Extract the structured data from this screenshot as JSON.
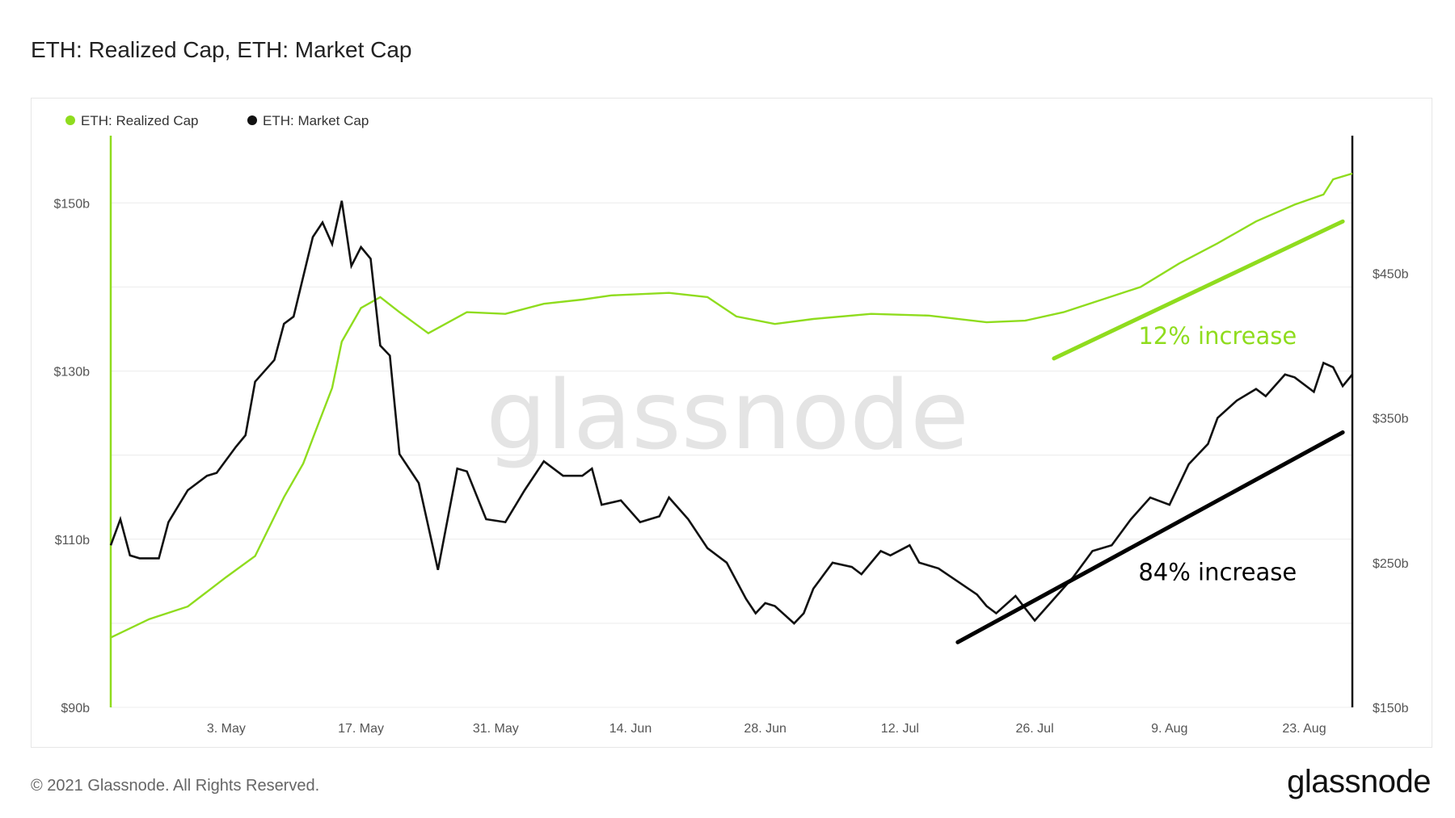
{
  "header": {
    "title": "ETH: Realized Cap, ETH: Market Cap"
  },
  "footer": {
    "copyright": "© 2021 Glassnode. All Rights Reserved.",
    "logo": "glassnode"
  },
  "watermark": "glassnode",
  "colors": {
    "realized": "#8fdc1e",
    "market": "#111111",
    "grid": "#ececec"
  },
  "chart_data": {
    "type": "line",
    "title": "ETH: Realized Cap, ETH: Market Cap",
    "legend_position": "top-left",
    "grid": true,
    "x_tick_labels": [
      "3. May",
      "17. May",
      "31. May",
      "14. Jun",
      "28. Jun",
      "12. Jul",
      "26. Jul",
      "9. Aug",
      "23. Aug"
    ],
    "x_range": [
      "2021-04-21",
      "2021-08-28"
    ],
    "y_left": {
      "unit": "USD billions",
      "range": [
        90,
        158
      ],
      "ticks": [
        90,
        110,
        130,
        150
      ],
      "tick_labels": [
        "$90b",
        "$110b",
        "$130b",
        "$150b"
      ]
    },
    "y_right": {
      "unit": "USD billions",
      "range": [
        150,
        545
      ],
      "ticks": [
        150,
        250,
        350,
        450
      ],
      "tick_labels": [
        "$150b",
        "$250b",
        "$350b",
        "$450b"
      ]
    },
    "series": [
      {
        "name": "ETH: Realized Cap",
        "axis": "left",
        "color": "#8fdc1e",
        "points": [
          [
            "2021-04-21",
            98.3
          ],
          [
            "2021-04-25",
            100.5
          ],
          [
            "2021-04-29",
            102.0
          ],
          [
            "2021-05-03",
            105.5
          ],
          [
            "2021-05-06",
            108.0
          ],
          [
            "2021-05-09",
            115.0
          ],
          [
            "2021-05-11",
            119.0
          ],
          [
            "2021-05-12",
            122.0
          ],
          [
            "2021-05-14",
            128.0
          ],
          [
            "2021-05-15",
            133.5
          ],
          [
            "2021-05-17",
            137.5
          ],
          [
            "2021-05-19",
            138.8
          ],
          [
            "2021-05-21",
            137.0
          ],
          [
            "2021-05-24",
            134.5
          ],
          [
            "2021-05-28",
            137.0
          ],
          [
            "2021-06-01",
            136.8
          ],
          [
            "2021-06-05",
            138.0
          ],
          [
            "2021-06-09",
            138.5
          ],
          [
            "2021-06-12",
            139.0
          ],
          [
            "2021-06-18",
            139.3
          ],
          [
            "2021-06-22",
            138.8
          ],
          [
            "2021-06-25",
            136.5
          ],
          [
            "2021-06-29",
            135.6
          ],
          [
            "2021-07-03",
            136.2
          ],
          [
            "2021-07-09",
            136.8
          ],
          [
            "2021-07-15",
            136.6
          ],
          [
            "2021-07-21",
            135.8
          ],
          [
            "2021-07-25",
            136.0
          ],
          [
            "2021-07-29",
            137.0
          ],
          [
            "2021-08-02",
            138.5
          ],
          [
            "2021-08-06",
            140.0
          ],
          [
            "2021-08-10",
            142.8
          ],
          [
            "2021-08-14",
            145.2
          ],
          [
            "2021-08-18",
            147.8
          ],
          [
            "2021-08-22",
            149.8
          ],
          [
            "2021-08-25",
            151.0
          ],
          [
            "2021-08-26",
            152.8
          ],
          [
            "2021-08-28",
            153.5
          ]
        ]
      },
      {
        "name": "ETH: Market Cap",
        "axis": "right",
        "color": "#111111",
        "points": [
          [
            "2021-04-21",
            262
          ],
          [
            "2021-04-22",
            280
          ],
          [
            "2021-04-23",
            255
          ],
          [
            "2021-04-24",
            253
          ],
          [
            "2021-04-26",
            253
          ],
          [
            "2021-04-27",
            278
          ],
          [
            "2021-04-29",
            300
          ],
          [
            "2021-05-01",
            310
          ],
          [
            "2021-05-02",
            312
          ],
          [
            "2021-05-04",
            330
          ],
          [
            "2021-05-05",
            338
          ],
          [
            "2021-05-06",
            375
          ],
          [
            "2021-05-08",
            390
          ],
          [
            "2021-05-09",
            415
          ],
          [
            "2021-05-10",
            420
          ],
          [
            "2021-05-12",
            475
          ],
          [
            "2021-05-13",
            485
          ],
          [
            "2021-05-14",
            470
          ],
          [
            "2021-05-15",
            500
          ],
          [
            "2021-05-16",
            455
          ],
          [
            "2021-05-17",
            468
          ],
          [
            "2021-05-18",
            460
          ],
          [
            "2021-05-19",
            400
          ],
          [
            "2021-05-20",
            393
          ],
          [
            "2021-05-21",
            325
          ],
          [
            "2021-05-23",
            305
          ],
          [
            "2021-05-25",
            245
          ],
          [
            "2021-05-27",
            315
          ],
          [
            "2021-05-28",
            313
          ],
          [
            "2021-05-30",
            280
          ],
          [
            "2021-06-01",
            278
          ],
          [
            "2021-06-03",
            300
          ],
          [
            "2021-06-05",
            320
          ],
          [
            "2021-06-07",
            310
          ],
          [
            "2021-06-09",
            310
          ],
          [
            "2021-06-10",
            315
          ],
          [
            "2021-06-11",
            290
          ],
          [
            "2021-06-13",
            293
          ],
          [
            "2021-06-15",
            278
          ],
          [
            "2021-06-17",
            282
          ],
          [
            "2021-06-18",
            295
          ],
          [
            "2021-06-20",
            280
          ],
          [
            "2021-06-22",
            260
          ],
          [
            "2021-06-24",
            250
          ],
          [
            "2021-06-26",
            225
          ],
          [
            "2021-06-27",
            215
          ],
          [
            "2021-06-28",
            222
          ],
          [
            "2021-06-29",
            220
          ],
          [
            "2021-07-01",
            208
          ],
          [
            "2021-07-02",
            215
          ],
          [
            "2021-07-03",
            232
          ],
          [
            "2021-07-05",
            250
          ],
          [
            "2021-07-07",
            247
          ],
          [
            "2021-07-08",
            242
          ],
          [
            "2021-07-10",
            258
          ],
          [
            "2021-07-11",
            255
          ],
          [
            "2021-07-13",
            262
          ],
          [
            "2021-07-14",
            250
          ],
          [
            "2021-07-16",
            246
          ],
          [
            "2021-07-18",
            237
          ],
          [
            "2021-07-20",
            228
          ],
          [
            "2021-07-21",
            220
          ],
          [
            "2021-07-22",
            215
          ],
          [
            "2021-07-24",
            227
          ],
          [
            "2021-07-26",
            210
          ],
          [
            "2021-07-28",
            225
          ],
          [
            "2021-07-30",
            240
          ],
          [
            "2021-08-01",
            258
          ],
          [
            "2021-08-03",
            262
          ],
          [
            "2021-08-05",
            280
          ],
          [
            "2021-08-07",
            295
          ],
          [
            "2021-08-09",
            290
          ],
          [
            "2021-08-11",
            318
          ],
          [
            "2021-08-13",
            332
          ],
          [
            "2021-08-14",
            350
          ],
          [
            "2021-08-16",
            362
          ],
          [
            "2021-08-18",
            370
          ],
          [
            "2021-08-19",
            365
          ],
          [
            "2021-08-21",
            380
          ],
          [
            "2021-08-22",
            378
          ],
          [
            "2021-08-24",
            368
          ],
          [
            "2021-08-25",
            388
          ],
          [
            "2021-08-26",
            385
          ],
          [
            "2021-08-27",
            372
          ],
          [
            "2021-08-28",
            380
          ]
        ]
      }
    ],
    "annotations": [
      {
        "text": "12% increase",
        "color": "#8fdc1e",
        "axis": "left",
        "arrow": [
          [
            "2021-07-28",
            131.5
          ],
          [
            "2021-08-27",
            147.8
          ]
        ],
        "label_at": [
          "2021-08-14",
          133.2
        ]
      },
      {
        "text": "84% increase",
        "color": "#000000",
        "axis": "right",
        "arrow": [
          [
            "2021-07-18",
            195
          ],
          [
            "2021-08-27",
            340
          ]
        ],
        "label_at": [
          "2021-08-14",
          238
        ]
      }
    ]
  }
}
